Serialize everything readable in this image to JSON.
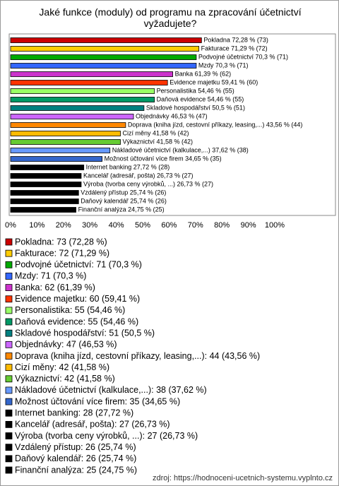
{
  "chart_data": {
    "type": "barh",
    "title": "Jaké funkce (moduly) od programu na zpracování účetnictví vyžadujete?",
    "categories": [
      "Pokladna",
      "Fakturace",
      "Podvojné účetnictví",
      "Mzdy",
      "Banka",
      "Evidence majetku",
      "Personalistika",
      "Daňová evidence",
      "Skladové hospodářství",
      "Objednávky",
      "Doprava (kniha jízd, cestovní příkazy, leasing,...)",
      "Cizí měny",
      "Výkaznictví",
      "Nákladové účetnictví (kalkulace,...)",
      "Možnost účtování více firem",
      "Internet banking",
      "Kancelář (adresář, pošta)",
      "Výroba (tvorba ceny výrobků, ...)",
      "Vzdálený přístup",
      "Daňový kalendář",
      "Finanční analýza"
    ],
    "values": [
      72.28,
      71.29,
      70.3,
      70.3,
      61.39,
      59.41,
      54.46,
      54.46,
      50.5,
      46.53,
      43.56,
      41.58,
      41.58,
      37.62,
      34.65,
      27.72,
      26.73,
      26.73,
      25.74,
      25.74,
      24.75
    ],
    "value_labels": [
      "Pokladna 72,28 % (73)",
      "Fakturace 71,29 % (72)",
      "Podvojné účetnictví 70,3 % (71)",
      "Mzdy 70,3 % (71)",
      "Banka 61,39 % (62)",
      "Evidence majetku 59,41 % (60)",
      "Personalistika 54,46 % (55)",
      "Daňová evidence 54,46 % (55)",
      "Skladové hospodářství 50,5 % (51)",
      "Objednávky 46,53 % (47)",
      "Doprava (kniha jízd, cestovní příkazy, leasing,...) 43,56 % (44)",
      "Cizí měny 41,58 % (42)",
      "Výkaznictví 41,58 % (42)",
      "Nákladové účetnictví (kalkulace,...) 37,62 % (38)",
      "Možnost účtování více firem 34,65 % (35)",
      "Internet banking 27,72 % (28)",
      "Kancelář (adresář, pošta) 26,73 % (27)",
      "Výroba (tvorba ceny výrobků, ...) 26,73 % (27)",
      "Vzdálený přístup 25,74 % (26)",
      "Daňový kalendář 25,74 % (26)",
      "Finanční analýza 24,75 % (25)"
    ],
    "colors": [
      "#cc0000",
      "#ffcc00",
      "#00aa00",
      "#3366ff",
      "#cc33cc",
      "#ff3300",
      "#99ff66",
      "#009966",
      "#008080",
      "#cc66ff",
      "#ff8800",
      "#ffbb00",
      "#66cc33",
      "#6699ff",
      "#3366cc",
      "#000000",
      "#000000",
      "#000000",
      "#000000",
      "#000000",
      "#000000"
    ],
    "legend": [
      "Pokladna: 73 (72,28 %)",
      "Fakturace: 72 (71,29 %)",
      "Podvojné účetnictví: 71 (70,3 %)",
      "Mzdy: 71 (70,3 %)",
      "Banka: 62 (61,39 %)",
      "Evidence majetku: 60 (59,41 %)",
      "Personalistika: 55 (54,46 %)",
      "Daňová evidence: 55 (54,46 %)",
      "Skladové hospodářství: 51 (50,5 %)",
      "Objednávky: 47 (46,53 %)",
      "Doprava (kniha jízd, cestovní příkazy, leasing,...): 44 (43,56 %)",
      "Cizí měny: 42 (41,58 %)",
      "Výkaznictví: 42 (41,58 %)",
      "Nákladové účetnictví (kalkulace,...): 38 (37,62 %)",
      "Možnost účtování více firem: 35 (34,65 %)",
      "Internet banking: 28 (27,72 %)",
      "Kancelář (adresář, pošta): 27 (26,73 %)",
      "Výroba (tvorba ceny výrobků, ...): 27 (26,73 %)",
      "Vzdálený přístup: 26 (25,74 %)",
      "Daňový kalendář: 26 (25,74 %)",
      "Finanční analýza: 25 (24,75 %)"
    ],
    "xlim": [
      0,
      100
    ],
    "xticks": [
      {
        "value": 0,
        "label": "0%"
      },
      {
        "value": 10,
        "label": "10%"
      },
      {
        "value": 20,
        "label": "20%"
      },
      {
        "value": 30,
        "label": "30%"
      },
      {
        "value": 40,
        "label": "40%"
      },
      {
        "value": 50,
        "label": "50%"
      },
      {
        "value": 60,
        "label": "60%"
      },
      {
        "value": 70,
        "label": "70%"
      },
      {
        "value": 80,
        "label": "80%"
      },
      {
        "value": 90,
        "label": "90%"
      },
      {
        "value": 100,
        "label": "100%"
      }
    ],
    "grid": false,
    "source": "zdroj: https://hodnoceni-ucetnich-systemu.vyplnto.cz"
  }
}
